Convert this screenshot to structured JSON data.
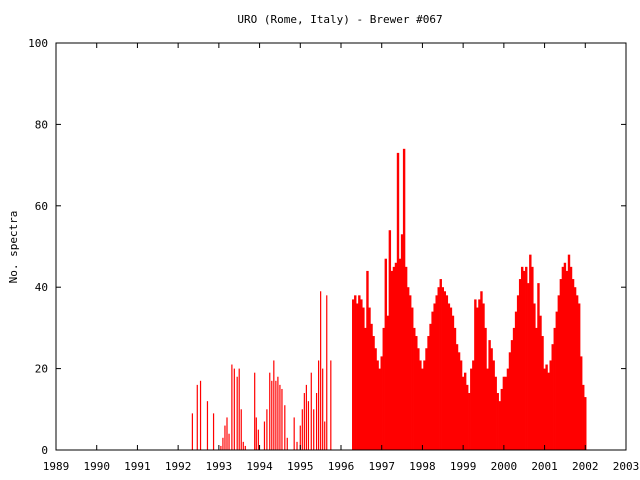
{
  "chart_data": {
    "type": "bar",
    "title": "URO (Rome, Italy) - Brewer #067",
    "xlabel": "",
    "ylabel": "No. spectra",
    "xlim": [
      1989,
      2003
    ],
    "ylim": [
      0,
      100
    ],
    "x_ticks": [
      "1989",
      "1990",
      "1991",
      "1992",
      "1993",
      "1994",
      "1995",
      "1996",
      "1997",
      "1998",
      "1999",
      "2000",
      "2001",
      "2002",
      "2003"
    ],
    "y_ticks": [
      "0",
      "20",
      "40",
      "60",
      "80",
      "100"
    ],
    "grid": false,
    "legend": "none",
    "bar_color": "#ff0000",
    "series": [
      {
        "note_units": "x = decimal year, y = number of spectra per day",
        "x": [
          1992.35,
          1992.47,
          1992.55,
          1992.72,
          1992.87,
          1993.05,
          1993.1,
          1993.15,
          1993.2,
          1993.25,
          1993.32,
          1993.38,
          1993.45,
          1993.5,
          1993.55,
          1993.6,
          1993.65,
          1993.88,
          1993.92,
          1993.97,
          1994.12,
          1994.18,
          1994.25,
          1994.3,
          1994.35,
          1994.4,
          1994.45,
          1994.5,
          1994.55,
          1994.62,
          1994.68,
          1994.85,
          1994.92,
          1995.0,
          1995.05,
          1995.1,
          1995.15,
          1995.2,
          1995.27,
          1995.33,
          1995.4,
          1995.45,
          1995.5,
          1995.55,
          1995.6,
          1995.65,
          1995.75,
          1996.3,
          1996.35,
          1996.4,
          1996.45,
          1996.5,
          1996.55,
          1996.6,
          1996.65,
          1996.7,
          1996.75,
          1996.8,
          1996.85,
          1996.9,
          1996.95,
          1997.0,
          1997.05,
          1997.1,
          1997.15,
          1997.2,
          1997.25,
          1997.3,
          1997.35,
          1997.4,
          1997.45,
          1997.5,
          1997.55,
          1997.6,
          1997.65,
          1997.7,
          1997.75,
          1997.8,
          1997.85,
          1997.9,
          1997.95,
          1998.0,
          1998.05,
          1998.1,
          1998.15,
          1998.2,
          1998.25,
          1998.3,
          1998.35,
          1998.4,
          1998.45,
          1998.5,
          1998.55,
          1998.6,
          1998.65,
          1998.7,
          1998.75,
          1998.8,
          1998.85,
          1998.9,
          1998.95,
          1999.0,
          1999.05,
          1999.1,
          1999.15,
          1999.2,
          1999.25,
          1999.3,
          1999.35,
          1999.4,
          1999.45,
          1999.5,
          1999.55,
          1999.6,
          1999.65,
          1999.7,
          1999.75,
          1999.8,
          1999.85,
          1999.9,
          1999.95,
          2000.0,
          2000.05,
          2000.1,
          2000.15,
          2000.2,
          2000.25,
          2000.3,
          2000.35,
          2000.4,
          2000.45,
          2000.5,
          2000.55,
          2000.6,
          2000.65,
          2000.7,
          2000.75,
          2000.8,
          2000.85,
          2000.9,
          2000.95,
          2001.0,
          2001.05,
          2001.1,
          2001.15,
          2001.2,
          2001.25,
          2001.3,
          2001.35,
          2001.4,
          2001.45,
          2001.5,
          2001.55,
          2001.6,
          2001.65,
          2001.7,
          2001.75,
          2001.8,
          2001.85,
          2001.9,
          2001.95,
          2002.0
        ],
        "y": [
          9,
          16,
          17,
          12,
          9,
          1,
          3,
          6,
          8,
          4,
          21,
          20,
          18,
          20,
          10,
          2,
          1,
          19,
          8,
          5,
          7,
          10,
          19,
          17,
          22,
          17,
          18,
          16,
          15,
          11,
          3,
          8,
          2,
          6,
          10,
          14,
          16,
          12,
          19,
          10,
          14,
          22,
          39,
          20,
          7,
          38,
          22,
          37,
          38,
          36,
          38,
          37,
          35,
          30,
          44,
          35,
          31,
          28,
          25,
          22,
          20,
          23,
          30,
          47,
          33,
          54,
          44,
          45,
          46,
          73,
          47,
          53,
          74,
          45,
          40,
          38,
          35,
          30,
          28,
          25,
          22,
          20,
          22,
          25,
          28,
          31,
          34,
          36,
          38,
          40,
          42,
          40,
          39,
          38,
          36,
          35,
          33,
          30,
          26,
          24,
          22,
          18,
          19,
          16,
          14,
          20,
          22,
          37,
          35,
          37,
          39,
          36,
          30,
          20,
          27,
          25,
          22,
          18,
          14,
          12,
          15,
          18,
          18,
          20,
          24,
          27,
          30,
          34,
          38,
          42,
          45,
          44,
          45,
          41,
          48,
          45,
          36,
          30,
          41,
          33,
          28,
          20,
          21,
          19,
          22,
          26,
          30,
          34,
          38,
          42,
          45,
          46,
          44,
          48,
          45,
          42,
          40,
          38,
          36,
          23,
          16,
          13
        ]
      }
    ]
  }
}
